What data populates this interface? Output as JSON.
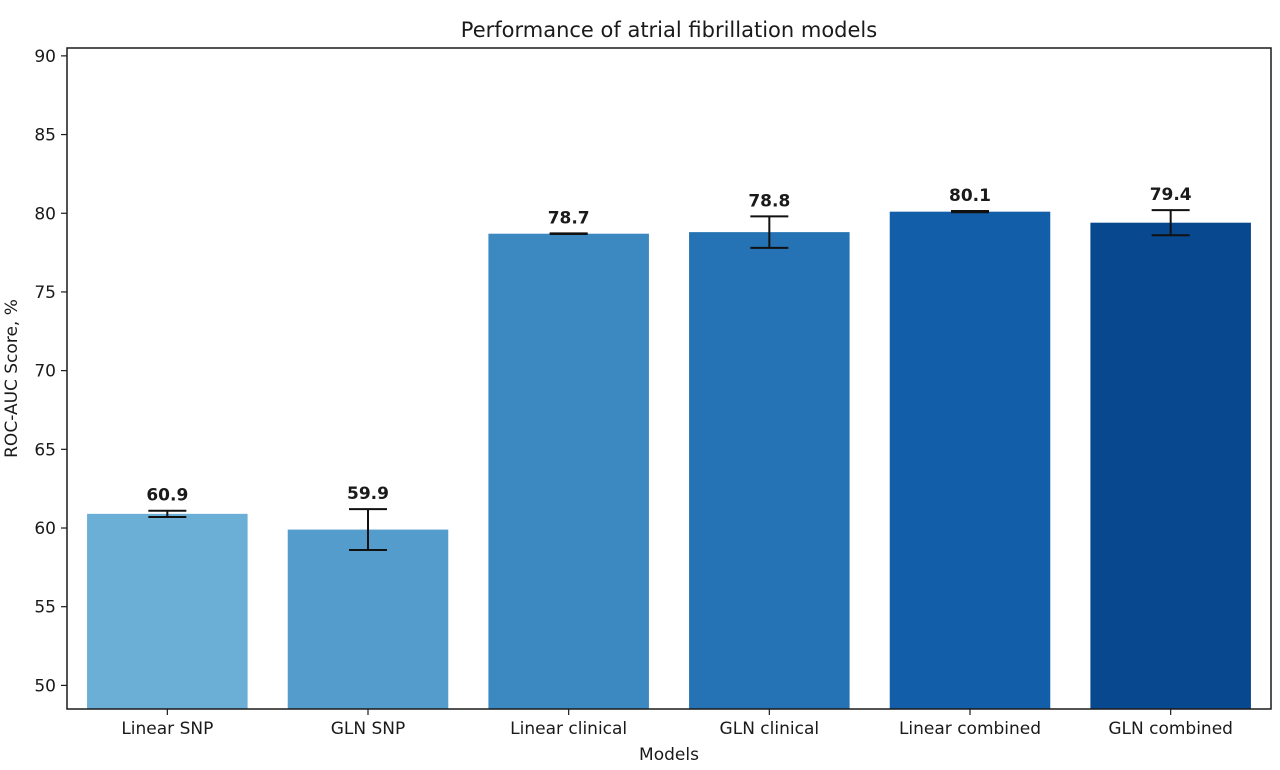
{
  "chart_data": {
    "type": "bar",
    "title": "Performance of atrial fibrillation models",
    "xlabel": "Models",
    "ylabel": "ROC-AUC Score, %",
    "ylim": [
      48.5,
      90.5
    ],
    "yticks": [
      50,
      55,
      60,
      65,
      70,
      75,
      80,
      85,
      90
    ],
    "categories": [
      "Linear SNP",
      "GLN SNP",
      "Linear clinical",
      "GLN clinical",
      "Linear combined",
      "GLN combined"
    ],
    "values": [
      60.9,
      59.9,
      78.7,
      78.8,
      80.1,
      79.4
    ],
    "value_labels": [
      "60.9",
      "59.9",
      "78.7",
      "78.8",
      "80.1",
      "79.4"
    ],
    "error": [
      0.2,
      1.3,
      0.02,
      1.0,
      0.04,
      0.8
    ],
    "colors": [
      "#6baed6",
      "#539ccb",
      "#3b89c0",
      "#2573b5",
      "#125ea8",
      "#08488e"
    ],
    "grid": false,
    "legend": "none"
  }
}
